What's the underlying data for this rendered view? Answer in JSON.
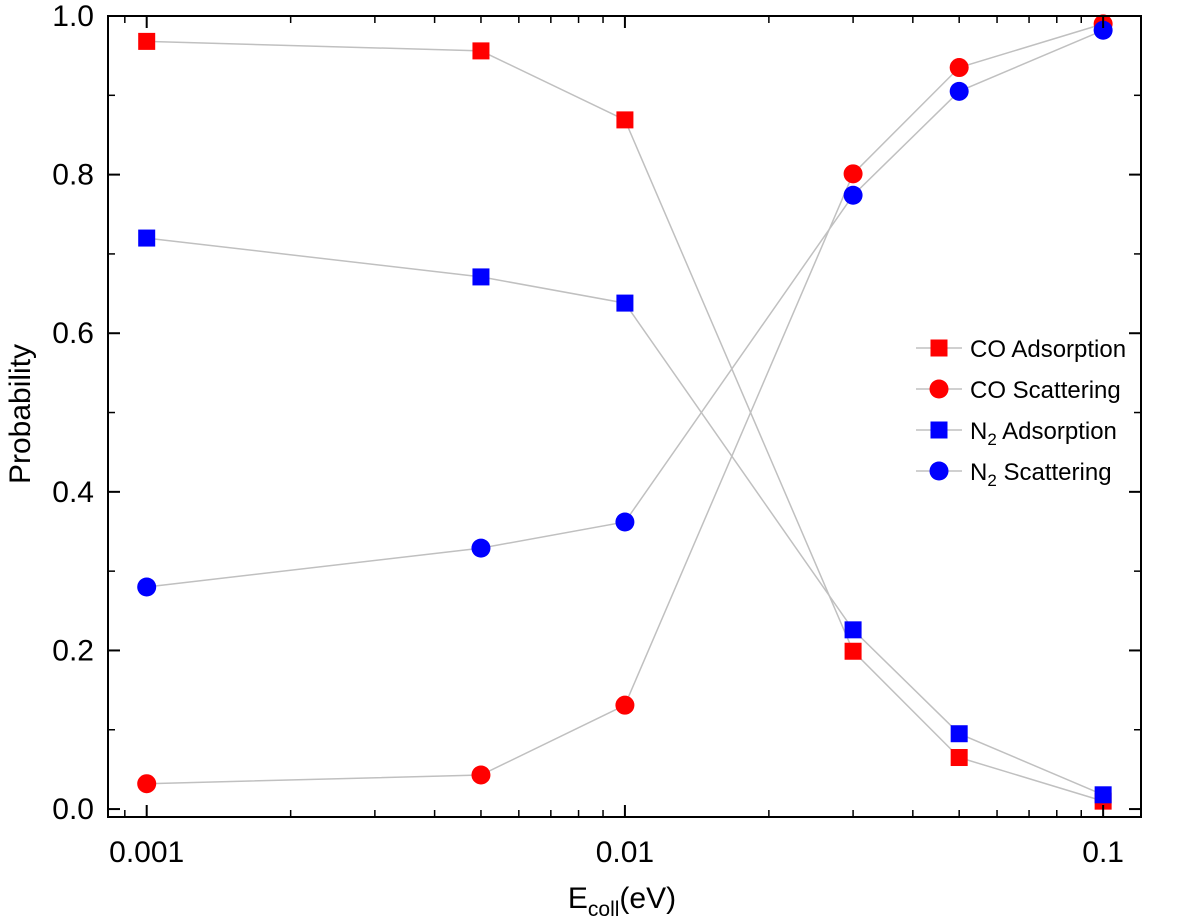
{
  "chart_data": {
    "type": "scatter",
    "xlabel_main": "E",
    "xlabel_sub": "coll",
    "xlabel_unit": "(eV)",
    "ylabel": "Probability",
    "xscale": "log",
    "xlim": [
      0.00083,
      0.12
    ],
    "ylim": [
      -0.01,
      1.0
    ],
    "grid": false,
    "legend_position": "right",
    "line_color": "#c0c0c0",
    "x_ticks": [
      0.001,
      0.01,
      0.1
    ],
    "x_tick_labels": [
      "0.001",
      "0.01",
      "0.1"
    ],
    "y_ticks": [
      0.0,
      0.2,
      0.4,
      0.6,
      0.8,
      1.0
    ],
    "y_tick_labels": [
      "0.0",
      "0.2",
      "0.4",
      "0.6",
      "0.8",
      "1.0"
    ],
    "series": [
      {
        "name": "CO Adsorption",
        "legend_main": "CO Adsorption",
        "legend_sub": "",
        "legend_rest": "",
        "marker": "square",
        "color": "#ff0000",
        "x": [
          0.001,
          0.005,
          0.01,
          0.03,
          0.05,
          0.1
        ],
        "y": [
          0.968,
          0.956,
          0.869,
          0.199,
          0.065,
          0.01
        ]
      },
      {
        "name": "CO Scattering",
        "legend_main": "CO Scattering",
        "legend_sub": "",
        "legend_rest": "",
        "marker": "circle",
        "color": "#ff0000",
        "x": [
          0.001,
          0.005,
          0.01,
          0.03,
          0.05,
          0.1
        ],
        "y": [
          0.032,
          0.043,
          0.131,
          0.801,
          0.935,
          0.99
        ]
      },
      {
        "name": "N2 Adsorption",
        "legend_main": "N",
        "legend_sub": "2",
        "legend_rest": " Adsorption",
        "marker": "square",
        "color": "#0000ff",
        "x": [
          0.001,
          0.005,
          0.01,
          0.03,
          0.05,
          0.1
        ],
        "y": [
          0.72,
          0.671,
          0.638,
          0.226,
          0.095,
          0.018
        ]
      },
      {
        "name": "N2 Scattering",
        "legend_main": "N",
        "legend_sub": "2",
        "legend_rest": " Scattering",
        "marker": "circle",
        "color": "#0000ff",
        "x": [
          0.001,
          0.005,
          0.01,
          0.03,
          0.05,
          0.1
        ],
        "y": [
          0.28,
          0.329,
          0.362,
          0.774,
          0.905,
          0.982
        ]
      }
    ]
  }
}
